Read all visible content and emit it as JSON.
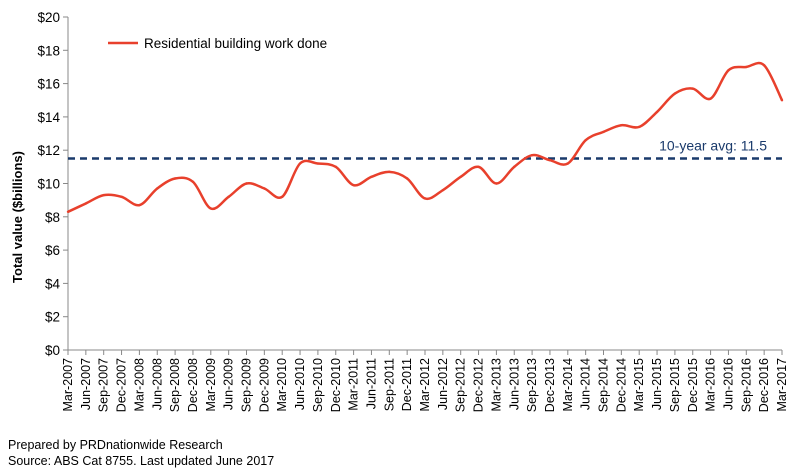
{
  "chart_data": {
    "type": "line",
    "title": "",
    "xlabel": "",
    "ylabel": "Total value ($billions)",
    "ylim": [
      0,
      20
    ],
    "yticks": [
      0,
      2,
      4,
      6,
      8,
      10,
      12,
      14,
      16,
      18,
      20
    ],
    "ytick_labels": [
      "$0",
      "$2",
      "$4",
      "$6",
      "$8",
      "$10",
      "$12",
      "$14",
      "$16",
      "$18",
      "$20"
    ],
    "categories": [
      "Mar-2007",
      "Jun-2007",
      "Sep-2007",
      "Dec-2007",
      "Mar-2008",
      "Jun-2008",
      "Sep-2008",
      "Dec-2008",
      "Mar-2009",
      "Jun-2009",
      "Sep-2009",
      "Dec-2009",
      "Mar-2010",
      "Jun-2010",
      "Sep-2010",
      "Dec-2010",
      "Mar-2011",
      "Jun-2011",
      "Sep-2011",
      "Dec-2011",
      "Mar-2012",
      "Jun-2012",
      "Sep-2012",
      "Dec-2012",
      "Mar-2013",
      "Jun-2013",
      "Sep-2013",
      "Dec-2013",
      "Mar-2014",
      "Jun-2014",
      "Sep-2014",
      "Dec-2014",
      "Mar-2015",
      "Jun-2015",
      "Sep-2015",
      "Dec-2015",
      "Mar-2016",
      "Jun-2016",
      "Sep-2016",
      "Dec-2016",
      "Mar-2017"
    ],
    "series": [
      {
        "name": "Residential building work done",
        "color": "#e8402c",
        "values": [
          8.3,
          8.8,
          9.3,
          9.2,
          8.7,
          9.7,
          10.3,
          10.1,
          8.5,
          9.2,
          10.0,
          9.7,
          9.2,
          11.2,
          11.2,
          11.0,
          9.9,
          10.4,
          10.7,
          10.3,
          9.1,
          9.6,
          10.4,
          11.0,
          10.0,
          11.0,
          11.7,
          11.4,
          11.2,
          12.6,
          13.1,
          13.5,
          13.4,
          14.3,
          15.4,
          15.7,
          15.1,
          16.8,
          17.0,
          17.1,
          15.0
        ]
      }
    ],
    "reference_line": {
      "value": 11.5,
      "label": "10-year avg: 11.5",
      "color": "#1a3a6b",
      "style": "dashed"
    },
    "legend": {
      "position": "top-left"
    },
    "grid": false
  },
  "footer": {
    "line1": "Prepared by PRDnationwide Research",
    "line2": "Source: ABS Cat 8755. Last updated June 2017"
  }
}
